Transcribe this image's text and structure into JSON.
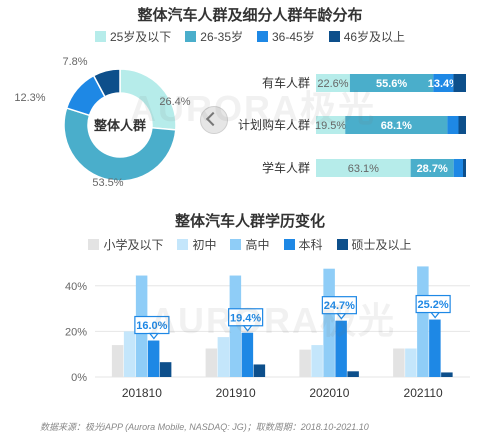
{
  "chart_data": [
    {
      "type": "pie",
      "title": "整体汽车人群及细分人群年龄分布",
      "center_label": "整体人群",
      "categories": [
        "25岁及以下",
        "26-35岁",
        "36-45岁",
        "46岁及以上"
      ],
      "values": [
        26.4,
        53.5,
        12.3,
        7.8
      ],
      "value_labels": [
        "26.4%",
        "53.5%",
        "12.3%",
        "7.8%"
      ],
      "colors": [
        "#b6ecea",
        "#4aaecb",
        "#1e88e5",
        "#0d4f8b"
      ]
    },
    {
      "type": "bar",
      "stacked": true,
      "orientation": "horizontal",
      "categories": [
        "有车人群",
        "计划购车人群",
        "学车人群"
      ],
      "series": [
        {
          "name": "25岁及以下",
          "values": [
            22.6,
            19.5,
            63.1
          ],
          "labels": [
            "22.6%",
            "19.5%",
            "63.1%"
          ]
        },
        {
          "name": "26-35岁",
          "values": [
            55.6,
            68.1,
            28.7
          ],
          "labels": [
            "55.6%",
            "68.1%",
            "28.7%"
          ]
        },
        {
          "name": "36-45岁",
          "values": [
            13.4,
            7.4,
            6.2
          ],
          "labels": [
            "13.4%",
            "",
            ""
          ]
        },
        {
          "name": "46岁及以上",
          "values": [
            8.4,
            5.0,
            2.0
          ],
          "labels": [
            "",
            "",
            ""
          ]
        }
      ],
      "xlim": [
        0,
        100
      ]
    },
    {
      "type": "bar",
      "title": "整体汽车人群学历变化",
      "categories": [
        "201810",
        "201910",
        "202010",
        "202110"
      ],
      "series": [
        {
          "name": "小学及以下",
          "values": [
            14,
            12.5,
            12,
            12.5
          ]
        },
        {
          "name": "初中",
          "values": [
            20,
            17.5,
            14,
            12.5
          ]
        },
        {
          "name": "高中",
          "values": [
            44.5,
            44.5,
            47.5,
            48.5
          ]
        },
        {
          "name": "本科",
          "values": [
            16.0,
            19.4,
            24.7,
            25.2
          ]
        },
        {
          "name": "硕士及以上",
          "values": [
            6.5,
            5.5,
            2.5,
            2.0
          ]
        }
      ],
      "highlight_labels": [
        "16.0%",
        "19.4%",
        "24.7%",
        "25.2%"
      ],
      "ytick_labels": [
        "0%",
        "20%",
        "40%"
      ],
      "ylim": [
        0,
        50
      ],
      "colors": [
        "#e3e3e3",
        "#c4e6fb",
        "#8fcdf7",
        "#1e88e5",
        "#0d4f8b"
      ]
    }
  ],
  "footer": "数据来源：极光iAPP (Aurora Mobile, NASDAQ: JG)；取数周期：2018.10-2021.10",
  "watermark": "AURORA极光"
}
